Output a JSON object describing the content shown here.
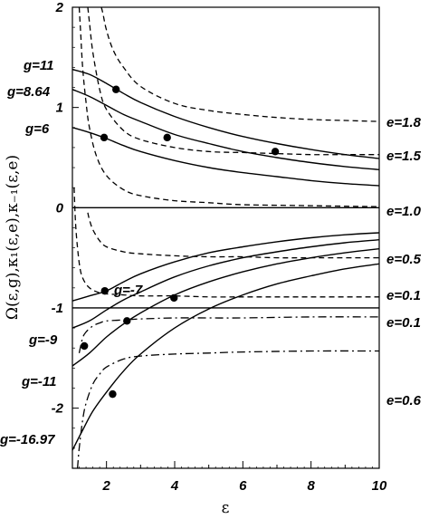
{
  "chart_data": {
    "type": "line",
    "title": "",
    "xlabel": "ε",
    "ylabel": "Ω(ε,g),κ₁(ε,e),κ₋₁(ε,e)",
    "xlim": [
      1,
      10
    ],
    "ylim": [
      -2.6,
      2
    ],
    "grid": false,
    "legend": "none",
    "x_ticks": [
      {
        "value": 2,
        "label": "2"
      },
      {
        "value": 4,
        "label": "4"
      },
      {
        "value": 6,
        "label": "6"
      },
      {
        "value": 8,
        "label": "8"
      },
      {
        "value": 10,
        "label": "10"
      }
    ],
    "y_ticks": [
      {
        "value": 2,
        "label": "2"
      },
      {
        "value": 1,
        "label": "1"
      },
      {
        "value": 0,
        "label": "0"
      },
      {
        "value": -1,
        "label": "-1"
      },
      {
        "value": -2,
        "label": "-2"
      }
    ],
    "omega_curves": [
      {
        "label": "g=11",
        "x": [
          1.0,
          1.5,
          2.0,
          2.5,
          3.0,
          4.0,
          5.0,
          6.0,
          7.0,
          8.0,
          9.0,
          10.0
        ],
        "y": [
          1.38,
          1.33,
          1.24,
          1.14,
          1.05,
          0.91,
          0.8,
          0.71,
          0.64,
          0.58,
          0.53,
          0.49
        ]
      },
      {
        "label": "g=8.64",
        "x": [
          1.0,
          1.5,
          2.0,
          2.5,
          3.0,
          4.0,
          5.0,
          6.0,
          7.0,
          8.0,
          9.0,
          10.0
        ],
        "y": [
          1.18,
          1.11,
          1.02,
          0.93,
          0.86,
          0.73,
          0.64,
          0.56,
          0.5,
          0.45,
          0.41,
          0.38
        ]
      },
      {
        "label": "g=6",
        "x": [
          1.0,
          1.5,
          2.0,
          2.5,
          3.0,
          4.0,
          5.0,
          6.0,
          7.0,
          8.0,
          9.0,
          10.0
        ],
        "y": [
          0.8,
          0.75,
          0.69,
          0.62,
          0.56,
          0.47,
          0.4,
          0.35,
          0.31,
          0.27,
          0.24,
          0.22
        ]
      },
      {
        "label": "g=-7",
        "x": [
          1.0,
          1.5,
          2.0,
          2.5,
          3.0,
          4.0,
          5.0,
          6.0,
          7.0,
          8.0,
          9.0,
          10.0
        ],
        "y": [
          -0.93,
          -0.88,
          -0.83,
          -0.74,
          -0.66,
          -0.54,
          -0.45,
          -0.39,
          -0.34,
          -0.3,
          -0.27,
          -0.25
        ]
      },
      {
        "label": "g=-9",
        "x": [
          1.0,
          1.5,
          2.0,
          2.5,
          3.0,
          4.0,
          5.0,
          6.0,
          7.0,
          8.0,
          9.0,
          10.0
        ],
        "y": [
          -1.2,
          -1.13,
          -1.02,
          -0.92,
          -0.84,
          -0.69,
          -0.58,
          -0.5,
          -0.44,
          -0.39,
          -0.35,
          -0.32
        ]
      },
      {
        "label": "g=-11",
        "x": [
          1.0,
          1.5,
          2.0,
          2.5,
          3.0,
          4.0,
          5.0,
          6.0,
          7.0,
          8.0,
          9.0,
          10.0
        ],
        "y": [
          -1.58,
          -1.45,
          -1.29,
          -1.16,
          -1.05,
          -0.87,
          -0.74,
          -0.64,
          -0.56,
          -0.5,
          -0.45,
          -0.41
        ]
      },
      {
        "label": "g=-16.97",
        "x": [
          1.0,
          1.3,
          1.6,
          2.0,
          2.5,
          3.0,
          4.0,
          5.0,
          6.0,
          7.0,
          8.0,
          9.0,
          10.0
        ],
        "y": [
          -2.42,
          -2.22,
          -2.03,
          -1.84,
          -1.63,
          -1.46,
          -1.2,
          -1.01,
          -0.87,
          -0.76,
          -0.68,
          -0.61,
          -0.56
        ]
      }
    ],
    "kappa_curves": [
      {
        "label": "e=1.8",
        "style": "dashed",
        "x": [
          1.85,
          1.9,
          2.0,
          2.2,
          2.5,
          3.0,
          4.0,
          5.0,
          6.0,
          7.0,
          8.0,
          9.0,
          10.0
        ],
        "y": [
          2.0,
          1.93,
          1.77,
          1.57,
          1.4,
          1.21,
          1.04,
          0.97,
          0.93,
          0.9,
          0.88,
          0.87,
          0.86
        ]
      },
      {
        "label": "e=1.5",
        "style": "dashed",
        "x": [
          1.45,
          1.5,
          1.6,
          1.8,
          2.0,
          2.5,
          3.0,
          4.0,
          5.0,
          6.0,
          7.0,
          8.0,
          9.0,
          10.0
        ],
        "y": [
          2.0,
          1.85,
          1.55,
          1.18,
          0.98,
          0.77,
          0.68,
          0.6,
          0.56,
          0.55,
          0.54,
          0.53,
          0.53,
          0.53
        ]
      },
      {
        "label": "e=1.0",
        "style": "dashed",
        "x": [
          1.2,
          1.25,
          1.3,
          1.4,
          1.5,
          1.7,
          2.0,
          2.5,
          3.0,
          4.0,
          5.0,
          6.0,
          8.0,
          10.0
        ],
        "y": [
          2.0,
          1.7,
          1.4,
          1.05,
          0.8,
          0.52,
          0.32,
          0.18,
          0.12,
          0.07,
          0.05,
          0.03,
          0.02,
          0.01
        ]
      },
      {
        "label": "e=0.5",
        "style": "dashed",
        "x": [
          1.45,
          1.5,
          1.6,
          1.8,
          2.0,
          2.5,
          3.0,
          4.0,
          5.0,
          6.0,
          7.0,
          8.0,
          10.0
        ],
        "y": [
          -0.05,
          -0.12,
          -0.22,
          -0.33,
          -0.39,
          -0.44,
          -0.46,
          -0.48,
          -0.49,
          -0.49,
          -0.5,
          -0.5,
          -0.5
        ]
      },
      {
        "label": "e=0.1",
        "style": "dashed",
        "x": [
          1.05,
          1.1,
          1.2,
          1.3,
          1.5,
          1.8,
          2.0,
          2.5,
          3.0,
          4.0,
          5.0,
          6.0,
          8.0,
          10.0
        ],
        "y": [
          0.2,
          -0.2,
          -0.55,
          -0.7,
          -0.8,
          -0.85,
          -0.86,
          -0.87,
          -0.88,
          -0.88,
          -0.89,
          -0.89,
          -0.89,
          -0.89
        ]
      },
      {
        "label": "e=0.1",
        "style": "dashdot",
        "x": [
          1.2,
          1.3,
          1.4,
          1.6,
          1.8,
          2.0,
          2.5,
          3.0,
          4.0,
          5.0,
          6.0,
          8.0,
          10.0
        ],
        "y": [
          -1.45,
          -1.3,
          -1.24,
          -1.18,
          -1.15,
          -1.13,
          -1.12,
          -1.11,
          -1.1,
          -1.1,
          -1.1,
          -1.09,
          -1.09
        ]
      },
      {
        "label": "e=0.6",
        "style": "dashdot",
        "x": [
          1.15,
          1.2,
          1.3,
          1.4,
          1.6,
          1.8,
          2.0,
          2.5,
          3.0,
          4.0,
          5.0,
          6.0,
          8.0,
          10.0
        ],
        "y": [
          -2.6,
          -2.4,
          -2.12,
          -1.95,
          -1.76,
          -1.66,
          -1.59,
          -1.51,
          -1.48,
          -1.46,
          -1.45,
          -1.44,
          -1.43,
          -1.43
        ]
      }
    ],
    "horizontal_lines": [
      0,
      -1
    ],
    "intersection_points": [
      {
        "x": 2.28,
        "y": 1.18
      },
      {
        "x": 1.93,
        "y": 0.7
      },
      {
        "x": 3.78,
        "y": 0.7
      },
      {
        "x": 6.95,
        "y": 0.56
      },
      {
        "x": 1.95,
        "y": -0.83
      },
      {
        "x": 3.98,
        "y": -0.9
      },
      {
        "x": 2.6,
        "y": -1.13
      },
      {
        "x": 1.35,
        "y": -1.38
      },
      {
        "x": 2.18,
        "y": -1.86
      }
    ]
  }
}
